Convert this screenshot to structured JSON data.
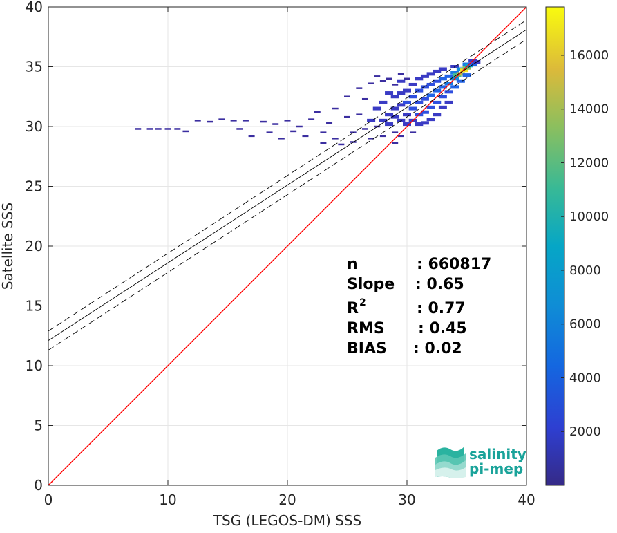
{
  "chart_data": {
    "type": "scatter",
    "subtype": "density-scatter (2D histogram) with regression lines",
    "title": "",
    "xlabel": "TSG (LEGOS-DM) SSS",
    "ylabel": "Satellite SSS",
    "xlim": [
      0,
      40
    ],
    "ylim": [
      0,
      40
    ],
    "xticks": [
      0,
      10,
      20,
      30,
      40
    ],
    "yticks": [
      0,
      5,
      10,
      15,
      20,
      25,
      30,
      35,
      40
    ],
    "grid": true,
    "colormap": "parula",
    "colorbar": {
      "range": [
        0,
        17800
      ],
      "ticks": [
        2000,
        4000,
        6000,
        8000,
        10000,
        12000,
        14000,
        16000
      ]
    },
    "lines": [
      {
        "name": "identity",
        "color": "#ff0000",
        "slope": 1,
        "intercept": 0
      },
      {
        "name": "regression",
        "color": "#000000",
        "slope": 0.65,
        "intercept": 12.1
      },
      {
        "name": "regression-upper",
        "color": "#000000",
        "style": "dashed",
        "slope": 0.65,
        "intercept": 12.9
      },
      {
        "name": "regression-lower",
        "color": "#000000",
        "style": "dashed",
        "slope": 0.65,
        "intercept": 11.3
      }
    ],
    "density_cells": [
      [
        7.5,
        29.8,
        1
      ],
      [
        8.5,
        29.8,
        1
      ],
      [
        9.2,
        29.8,
        1
      ],
      [
        10,
        29.8,
        1
      ],
      [
        10.8,
        29.8,
        1
      ],
      [
        11.5,
        29.6,
        1
      ],
      [
        12.5,
        30.5,
        1
      ],
      [
        13.5,
        30.4,
        1
      ],
      [
        14.5,
        30.6,
        1
      ],
      [
        15.5,
        30.5,
        1
      ],
      [
        16,
        29.8,
        1
      ],
      [
        16.5,
        30.5,
        1
      ],
      [
        17,
        29.2,
        1
      ],
      [
        18,
        30.4,
        1
      ],
      [
        18.5,
        29.5,
        1
      ],
      [
        19,
        30.2,
        1
      ],
      [
        19.5,
        29.0,
        1
      ],
      [
        20,
        30.5,
        1
      ],
      [
        20.5,
        29.6,
        1
      ],
      [
        21,
        30.0,
        1
      ],
      [
        21.5,
        29.2,
        1
      ],
      [
        22,
        30.6,
        1
      ],
      [
        22.5,
        31.2,
        1
      ],
      [
        23,
        29.5,
        1
      ],
      [
        23,
        28.6,
        1
      ],
      [
        23.5,
        30.3,
        1
      ],
      [
        24,
        29.0,
        1
      ],
      [
        24,
        31.5,
        1
      ],
      [
        24.5,
        28.5,
        1
      ],
      [
        25,
        30.8,
        1
      ],
      [
        25,
        32.5,
        1
      ],
      [
        25.5,
        29.5,
        1
      ],
      [
        25.5,
        28.7,
        1
      ],
      [
        26,
        31.0,
        1
      ],
      [
        26,
        33.2,
        1
      ],
      [
        26.5,
        29.8,
        1
      ],
      [
        26.5,
        32.3,
        1
      ],
      [
        27,
        30.5,
        2
      ],
      [
        27,
        29.0,
        1
      ],
      [
        27,
        33.6,
        1
      ],
      [
        27.5,
        31.5,
        2
      ],
      [
        27.5,
        30.0,
        1
      ],
      [
        27.5,
        34.2,
        1
      ],
      [
        28,
        32.0,
        2
      ],
      [
        28,
        30.5,
        2
      ],
      [
        28,
        29.2,
        1
      ],
      [
        28,
        33.8,
        1
      ],
      [
        28.5,
        31.0,
        2
      ],
      [
        28.5,
        32.8,
        2
      ],
      [
        28.5,
        30.2,
        2
      ],
      [
        28.5,
        34.0,
        1
      ],
      [
        29,
        31.5,
        2
      ],
      [
        29,
        30.8,
        2
      ],
      [
        29,
        32.5,
        2
      ],
      [
        29,
        33.5,
        1
      ],
      [
        29,
        29.5,
        1
      ],
      [
        29,
        28.6,
        1
      ],
      [
        29.5,
        30.5,
        2
      ],
      [
        29.5,
        31.8,
        2
      ],
      [
        29.5,
        32.8,
        2
      ],
      [
        29.5,
        33.8,
        2
      ],
      [
        29.5,
        29.2,
        1
      ],
      [
        29.5,
        34.4,
        1
      ],
      [
        30,
        31.0,
        2
      ],
      [
        30,
        32.0,
        3
      ],
      [
        30,
        33.0,
        2
      ],
      [
        30,
        30.2,
        2
      ],
      [
        30,
        34.0,
        1
      ],
      [
        30.5,
        31.5,
        3
      ],
      [
        30.5,
        32.5,
        3
      ],
      [
        30.5,
        30.5,
        2
      ],
      [
        30.5,
        33.5,
        2
      ],
      [
        30.5,
        29.5,
        1
      ],
      [
        31,
        32.0,
        3
      ],
      [
        31,
        33.0,
        3
      ],
      [
        31,
        31.0,
        3
      ],
      [
        31,
        30.2,
        2
      ],
      [
        31,
        34.0,
        2
      ],
      [
        31.5,
        32.3,
        3
      ],
      [
        31.5,
        33.3,
        3
      ],
      [
        31.5,
        31.2,
        3
      ],
      [
        31.5,
        30.3,
        2
      ],
      [
        31.5,
        34.2,
        2
      ],
      [
        32,
        32.6,
        4
      ],
      [
        32,
        33.5,
        3
      ],
      [
        32,
        31.6,
        3
      ],
      [
        32,
        30.6,
        2
      ],
      [
        32,
        34.4,
        2
      ],
      [
        32.5,
        33.0,
        4
      ],
      [
        32.5,
        33.8,
        3
      ],
      [
        32.5,
        32.0,
        3
      ],
      [
        32.5,
        31.0,
        2
      ],
      [
        32.5,
        34.6,
        2
      ],
      [
        33,
        33.3,
        4
      ],
      [
        33,
        34.0,
        4
      ],
      [
        33,
        32.5,
        3
      ],
      [
        33,
        31.6,
        2
      ],
      [
        33,
        34.8,
        2
      ],
      [
        33.5,
        33.6,
        5
      ],
      [
        33.5,
        34.2,
        4
      ],
      [
        33.5,
        32.9,
        3
      ],
      [
        33.5,
        32.0,
        2
      ],
      [
        34,
        34.0,
        6
      ],
      [
        34,
        34.5,
        5
      ],
      [
        34,
        33.3,
        4
      ],
      [
        34,
        35.0,
        2
      ],
      [
        34.2,
        34.3,
        9
      ],
      [
        34.5,
        34.4,
        11
      ],
      [
        34.5,
        34.8,
        6
      ],
      [
        34.5,
        33.8,
        4
      ],
      [
        34.8,
        34.7,
        13
      ],
      [
        35,
        34.9,
        10
      ],
      [
        35,
        35.2,
        5
      ],
      [
        35,
        34.3,
        4
      ],
      [
        35.2,
        35.1,
        7
      ],
      [
        35.5,
        35.2,
        4
      ],
      [
        35.5,
        35.5,
        2
      ],
      [
        35.8,
        35.4,
        2
      ]
    ],
    "stats": [
      {
        "label": "n",
        "value": ": 660817"
      },
      {
        "label": "Slope",
        "value": ": 0.65"
      },
      {
        "label": "R",
        "sup": "2",
        "value": ": 0.77"
      },
      {
        "label": "RMS",
        "value": ": 0.45"
      },
      {
        "label": "BIAS",
        "value": ": 0.02"
      }
    ]
  },
  "logo": {
    "line1": "salinity",
    "line2": "pi-mep",
    "color": "#1aa39a"
  },
  "colors": {
    "identity": "#ff0000",
    "regression": "#000000",
    "grid": "#e6e6e6",
    "axis": "#262626"
  }
}
